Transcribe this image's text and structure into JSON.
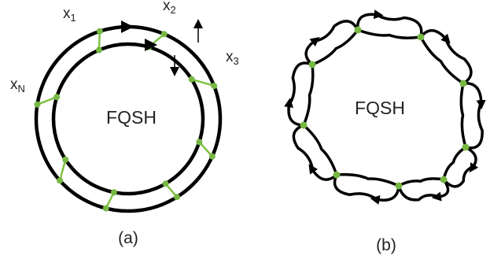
{
  "colors": {
    "stroke": "#000000",
    "link": "#7fc241",
    "node": "#76b843"
  },
  "panel_a": {
    "center_text": "FQSH",
    "caption": "(a)",
    "site_labels": [
      {
        "base": "x",
        "sub": "1"
      },
      {
        "base": "x",
        "sub": "2"
      },
      {
        "base": "x",
        "sub": "3"
      },
      {
        "base": "x",
        "sub": "N"
      }
    ]
  },
  "panel_b": {
    "center_text": "FQSH",
    "caption": "(b)",
    "loop_count": 8
  }
}
